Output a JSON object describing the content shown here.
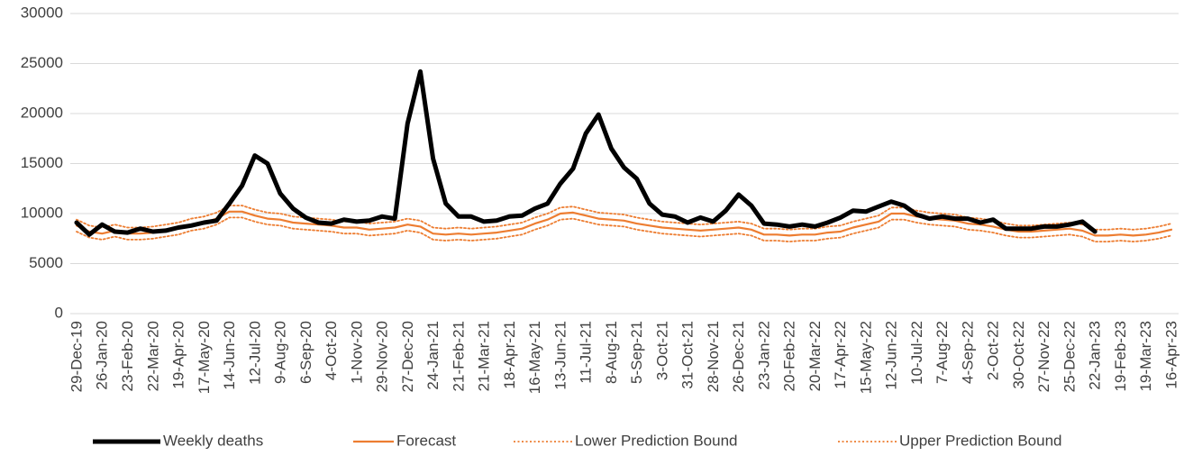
{
  "chart_data": {
    "type": "line",
    "categories": [
      "29-Dec-19",
      null,
      "26-Jan-20",
      null,
      "23-Feb-20",
      null,
      "22-Mar-20",
      null,
      "19-Apr-20",
      null,
      "17-May-20",
      null,
      "14-Jun-20",
      null,
      "12-Jul-20",
      null,
      "9-Aug-20",
      null,
      "6-Sep-20",
      null,
      "4-Oct-20",
      null,
      "1-Nov-20",
      null,
      "29-Nov-20",
      null,
      "27-Dec-20",
      null,
      "24-Jan-21",
      null,
      "21-Feb-21",
      null,
      "21-Mar-21",
      null,
      "18-Apr-21",
      null,
      "16-May-21",
      null,
      "13-Jun-21",
      null,
      "11-Jul-21",
      null,
      "8-Aug-21",
      null,
      "5-Sep-21",
      null,
      "3-Oct-21",
      null,
      "31-Oct-21",
      null,
      "28-Nov-21",
      null,
      "26-Dec-21",
      null,
      "23-Jan-22",
      null,
      "20-Feb-22",
      null,
      "20-Mar-22",
      null,
      "17-Apr-22",
      null,
      "15-May-22",
      null,
      "12-Jun-22",
      null,
      "10-Jul-22",
      null,
      "7-Aug-22",
      null,
      "4-Sep-22",
      null,
      "2-Oct-22",
      null,
      "30-Oct-22",
      null,
      "27-Nov-22",
      null,
      "25-Dec-22",
      null,
      "22-Jan-23",
      null,
      "19-Feb-23",
      null,
      "19-Mar-23",
      null,
      "16-Apr-23"
    ],
    "series": [
      {
        "name": "Weekly deaths",
        "color": "#000000",
        "line_style": "thick",
        "values": [
          9100,
          7900,
          8900,
          8200,
          8100,
          8500,
          8200,
          8300,
          8600,
          8800,
          9100,
          9300,
          11000,
          12800,
          15800,
          15000,
          12000,
          10500,
          9600,
          9100,
          9000,
          9400,
          9200,
          9300,
          9700,
          9500,
          19000,
          24200,
          15500,
          11000,
          9700,
          9700,
          9200,
          9300,
          9700,
          9800,
          10500,
          11000,
          13000,
          14500,
          18000,
          19900,
          16500,
          14600,
          13500,
          11000,
          9900,
          9700,
          9100,
          9600,
          9200,
          10300,
          11900,
          10800,
          9000,
          8900,
          8700,
          8900,
          8700,
          9100,
          9600,
          10300,
          10200,
          10700,
          11200,
          10800,
          9900,
          9500,
          9700,
          9500,
          9500,
          9100,
          9400,
          8500,
          8500,
          8500,
          8700,
          8700,
          8900,
          9200,
          8200,
          null,
          null,
          null,
          null,
          null,
          null
        ]
      },
      {
        "name": "Forecast",
        "color": "#ed7d31",
        "line_style": "solid",
        "values": [
          8800,
          8200,
          8000,
          8300,
          8000,
          8000,
          8100,
          8300,
          8500,
          8900,
          9100,
          9500,
          10200,
          10200,
          9800,
          9500,
          9400,
          9100,
          9000,
          8900,
          8800,
          8600,
          8600,
          8400,
          8500,
          8600,
          8900,
          8700,
          8000,
          7900,
          8000,
          7900,
          8000,
          8100,
          8300,
          8500,
          9000,
          9400,
          10000,
          10100,
          9800,
          9500,
          9400,
          9300,
          9000,
          8800,
          8600,
          8500,
          8400,
          8300,
          8400,
          8500,
          8600,
          8400,
          7900,
          7900,
          7800,
          7900,
          7900,
          8100,
          8200,
          8600,
          8900,
          9200,
          10000,
          10000,
          9700,
          9500,
          9400,
          9300,
          9000,
          8900,
          8700,
          8400,
          8200,
          8200,
          8300,
          8400,
          8500,
          8300,
          7800,
          7800,
          7900,
          7800,
          7900,
          8100,
          8400
        ]
      },
      {
        "name": "Lower Prediction Bound",
        "color": "#ed7d31",
        "line_style": "dotted",
        "values": [
          8200,
          7600,
          7400,
          7700,
          7400,
          7400,
          7500,
          7700,
          7900,
          8300,
          8500,
          8900,
          9600,
          9600,
          9200,
          8900,
          8800,
          8500,
          8400,
          8300,
          8200,
          8000,
          8000,
          7800,
          7900,
          8000,
          8300,
          8100,
          7400,
          7300,
          7400,
          7300,
          7400,
          7500,
          7700,
          7900,
          8400,
          8800,
          9400,
          9500,
          9200,
          8900,
          8800,
          8700,
          8400,
          8200,
          8000,
          7900,
          7800,
          7700,
          7800,
          7900,
          8000,
          7800,
          7300,
          7300,
          7200,
          7300,
          7300,
          7500,
          7600,
          8000,
          8300,
          8600,
          9400,
          9400,
          9100,
          8900,
          8800,
          8700,
          8400,
          8300,
          8100,
          7800,
          7600,
          7600,
          7700,
          7800,
          7900,
          7700,
          7200,
          7200,
          7300,
          7200,
          7300,
          7500,
          7800
        ]
      },
      {
        "name": "Upper Prediction Bound",
        "color": "#ed7d31",
        "line_style": "dotted",
        "values": [
          9400,
          8800,
          8600,
          8900,
          8600,
          8600,
          8700,
          8900,
          9100,
          9500,
          9700,
          10100,
          10800,
          10800,
          10400,
          10100,
          10000,
          9700,
          9600,
          9500,
          9400,
          9200,
          9200,
          9000,
          9100,
          9200,
          9500,
          9300,
          8600,
          8500,
          8600,
          8500,
          8600,
          8700,
          8900,
          9100,
          9600,
          10000,
          10600,
          10700,
          10400,
          10100,
          10000,
          9900,
          9600,
          9400,
          9200,
          9100,
          9000,
          8900,
          9000,
          9100,
          9200,
          9000,
          8500,
          8500,
          8400,
          8500,
          8500,
          8700,
          8800,
          9200,
          9500,
          9800,
          10600,
          10600,
          10300,
          10100,
          10000,
          9900,
          9600,
          9500,
          9300,
          9000,
          8800,
          8800,
          8900,
          9000,
          9100,
          8900,
          8400,
          8400,
          8500,
          8400,
          8500,
          8700,
          9000
        ]
      }
    ],
    "ylim": [
      0,
      30000
    ],
    "yticks": [
      0,
      5000,
      10000,
      15000,
      20000,
      25000,
      30000
    ],
    "grid": true,
    "legend": "bottom"
  }
}
